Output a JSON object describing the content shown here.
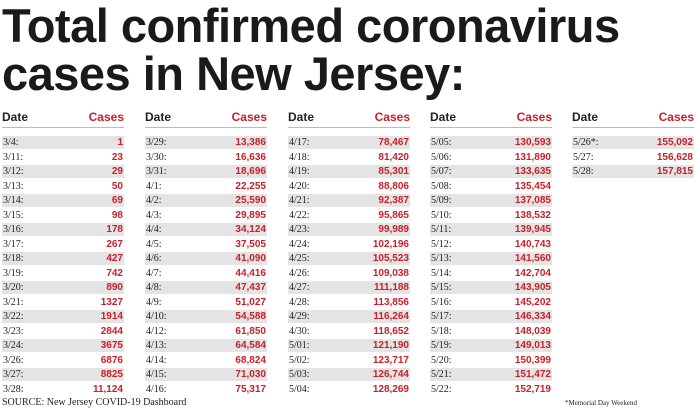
{
  "title": [
    "Total confirmed coronavirus",
    "cases in New Jersey:"
  ],
  "columns": [
    {
      "header": [
        "Date",
        "Cases"
      ],
      "rows": [
        [
          "3/4:",
          "1"
        ],
        [
          "3/11:",
          "23"
        ],
        [
          "3/12:",
          "29"
        ],
        [
          "3/13:",
          "50"
        ],
        [
          "3/14:",
          "69"
        ],
        [
          "3/15:",
          "98"
        ],
        [
          "3/16:",
          "178"
        ],
        [
          "3/17:",
          "267"
        ],
        [
          "3/18:",
          "427"
        ],
        [
          "3/19:",
          "742"
        ],
        [
          "3/20:",
          "890"
        ],
        [
          "3/21:",
          "1327"
        ],
        [
          "3/22:",
          "1914"
        ],
        [
          "3/23:",
          "2844"
        ],
        [
          "3/24:",
          "3675"
        ],
        [
          "3/26:",
          "6876"
        ],
        [
          "3/27:",
          "8825"
        ],
        [
          "3/28:",
          "11,124"
        ]
      ]
    },
    {
      "header": [
        "Date",
        "Cases"
      ],
      "rows": [
        [
          "3/29:",
          "13,386"
        ],
        [
          "3/30:",
          "16,636"
        ],
        [
          "3/31:",
          "18,696"
        ],
        [
          "4/1:",
          "22,255"
        ],
        [
          "4/2:",
          "25,590"
        ],
        [
          "4/3:",
          "29,895"
        ],
        [
          "4/4:",
          "34,124"
        ],
        [
          "4/5:",
          "37,505"
        ],
        [
          "4/6:",
          "41,090"
        ],
        [
          "4/7:",
          "44,416"
        ],
        [
          "4/8:",
          "47,437"
        ],
        [
          "4/9:",
          "51,027"
        ],
        [
          "4/10:",
          "54,588"
        ],
        [
          "4/12:",
          "61,850"
        ],
        [
          "4/13:",
          "64,584"
        ],
        [
          "4/14:",
          "68,824"
        ],
        [
          "4/15:",
          "71,030"
        ],
        [
          "4/16:",
          "75,317"
        ]
      ]
    },
    {
      "header": [
        "Date",
        "Cases"
      ],
      "rows": [
        [
          "4/17:",
          "78,467"
        ],
        [
          "4/18:",
          "81,420"
        ],
        [
          "4/19:",
          "85,301"
        ],
        [
          "4/20:",
          "88,806"
        ],
        [
          "4/21:",
          "92,387"
        ],
        [
          "4/22:",
          "95,865"
        ],
        [
          "4/23:",
          "99,989"
        ],
        [
          "4/24:",
          "102,196"
        ],
        [
          "4/25:",
          "105,523"
        ],
        [
          "4/26:",
          "109,038"
        ],
        [
          "4/27:",
          "111,188"
        ],
        [
          "4/28:",
          "113,856"
        ],
        [
          "4/29:",
          "116,264"
        ],
        [
          "4/30:",
          "118,652"
        ],
        [
          "5/01:",
          "121,190"
        ],
        [
          "5/02:",
          "123,717"
        ],
        [
          "5/03:",
          "126,744"
        ],
        [
          "5/04:",
          "128,269"
        ]
      ]
    },
    {
      "header": [
        "Date",
        "Cases"
      ],
      "rows": [
        [
          "5/05:",
          "130,593"
        ],
        [
          "5/06:",
          "131,890"
        ],
        [
          "5/07:",
          "133,635"
        ],
        [
          "5/08:",
          "135,454"
        ],
        [
          "5/09:",
          "137,085"
        ],
        [
          "5/10:",
          "138,532"
        ],
        [
          "5/11:",
          "139,945"
        ],
        [
          "5/12:",
          "140,743"
        ],
        [
          "5/13:",
          "141,560"
        ],
        [
          "5/14:",
          "142,704"
        ],
        [
          "5/15:",
          "143,905"
        ],
        [
          "5/16:",
          "145,202"
        ],
        [
          "5/17:",
          "146,334"
        ],
        [
          "5/18:",
          "148,039"
        ],
        [
          "5/19:",
          "149,013"
        ],
        [
          "5/20:",
          "150,399"
        ],
        [
          "5/21:",
          "151,472"
        ],
        [
          "5/22:",
          "152,719"
        ]
      ]
    },
    {
      "header": [
        "Date",
        "Cases"
      ],
      "rows": [
        [
          "5/26*:",
          "155,092"
        ],
        [
          "5/27:",
          "156,628"
        ],
        [
          "5/28:",
          "157,815"
        ]
      ]
    }
  ],
  "source": "SOURCE: New Jersey COVID-19 Dashboard",
  "footnote": "*Memorial Day Weekend"
}
